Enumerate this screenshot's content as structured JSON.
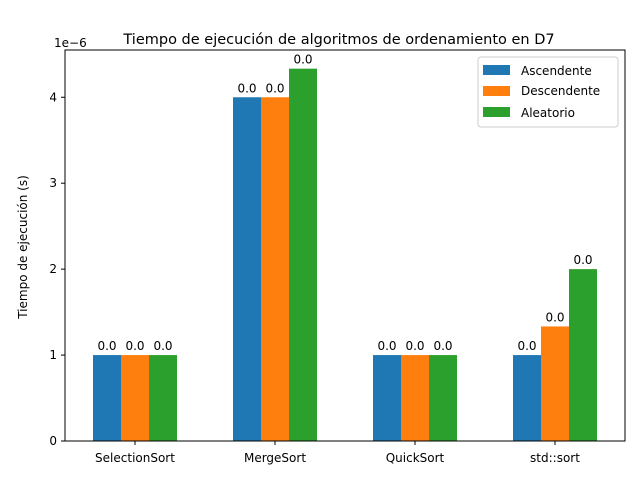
{
  "chart_data": {
    "type": "bar",
    "title": "Tiempo de ejecución de algoritmos de ordenamiento en D7",
    "xlabel": "",
    "ylabel": "Tiempo de ejecución (s)",
    "y_scale_label": "1e−6",
    "y_scale_factor": 1e-06,
    "ylim": [
      0,
      4.55e-06
    ],
    "yticks": [
      {
        "value": 0,
        "label": "0"
      },
      {
        "value": 1e-06,
        "label": "1"
      },
      {
        "value": 2e-06,
        "label": "2"
      },
      {
        "value": 3e-06,
        "label": "3"
      },
      {
        "value": 4e-06,
        "label": "4"
      }
    ],
    "categories": [
      "SelectionSort",
      "MergeSort",
      "QuickSort",
      "std::sort"
    ],
    "series": [
      {
        "name": "Ascendente",
        "color": "#1f77b4",
        "values": [
          1e-06,
          4e-06,
          1e-06,
          1e-06
        ],
        "data_labels": [
          "0.0",
          "0.0",
          "0.0",
          "0.0"
        ]
      },
      {
        "name": "Descendente",
        "color": "#ff7f0e",
        "values": [
          1e-06,
          4e-06,
          1e-06,
          1.333e-06
        ],
        "data_labels": [
          "0.0",
          "0.0",
          "0.0",
          "0.0"
        ]
      },
      {
        "name": "Aleatorio",
        "color": "#2ca02c",
        "values": [
          1e-06,
          4.333e-06,
          1e-06,
          2e-06
        ],
        "data_labels": [
          "0.0",
          "0.0",
          "0.0",
          "0.0"
        ]
      }
    ],
    "grid": false,
    "legend_position": "top-right"
  }
}
